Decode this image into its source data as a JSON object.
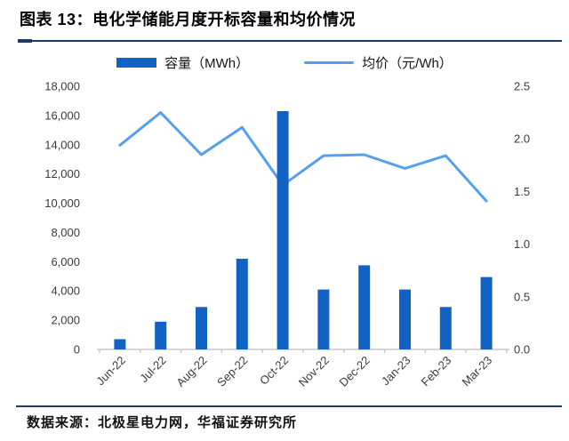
{
  "header": {
    "title": "图表 13：电化学储能月度开标容量和均价情况"
  },
  "footer": {
    "source": "数据来源：北极星电力网，华福证券研究所"
  },
  "colors": {
    "bar": "#1262c4",
    "line": "#55a0ee",
    "rule": "#1f3864",
    "axis_line": "#c9c9c9",
    "axis_text": "#3a3a3a"
  },
  "chart_data": {
    "type": "bar",
    "subtype": "bar+line dual-axis",
    "title": "电化学储能月度开标容量和均价情况",
    "grid": false,
    "legend_position": "top-center",
    "categories": [
      "Jun-22",
      "Jul-22",
      "Aug-22",
      "Sep-22",
      "Oct-22",
      "Nov-22",
      "Dec-22",
      "Jan-23",
      "Feb-23",
      "Mar-23"
    ],
    "series": [
      {
        "name": "容量（MWh）",
        "type": "bar",
        "axis": "left",
        "color": "#1262c4",
        "values": [
          700,
          1900,
          2900,
          6200,
          16300,
          4100,
          5750,
          4100,
          2900,
          4950
        ]
      },
      {
        "name": "均价（元/Wh）",
        "type": "line",
        "axis": "right",
        "color": "#55a0ee",
        "values": [
          1.94,
          2.25,
          1.85,
          2.11,
          1.56,
          1.84,
          1.85,
          1.72,
          1.84,
          1.41
        ]
      }
    ],
    "left_axis": {
      "min": 0,
      "max": 18000,
      "step": 2000,
      "tick_labels": [
        "0",
        "2,000",
        "4,000",
        "6,000",
        "8,000",
        "10,000",
        "12,000",
        "14,000",
        "16,000",
        "18,000"
      ]
    },
    "right_axis": {
      "min": 0,
      "max": 2.5,
      "step": 0.5,
      "tick_labels": [
        "0.0",
        "0.5",
        "1.0",
        "1.5",
        "2.0",
        "2.5"
      ]
    }
  }
}
